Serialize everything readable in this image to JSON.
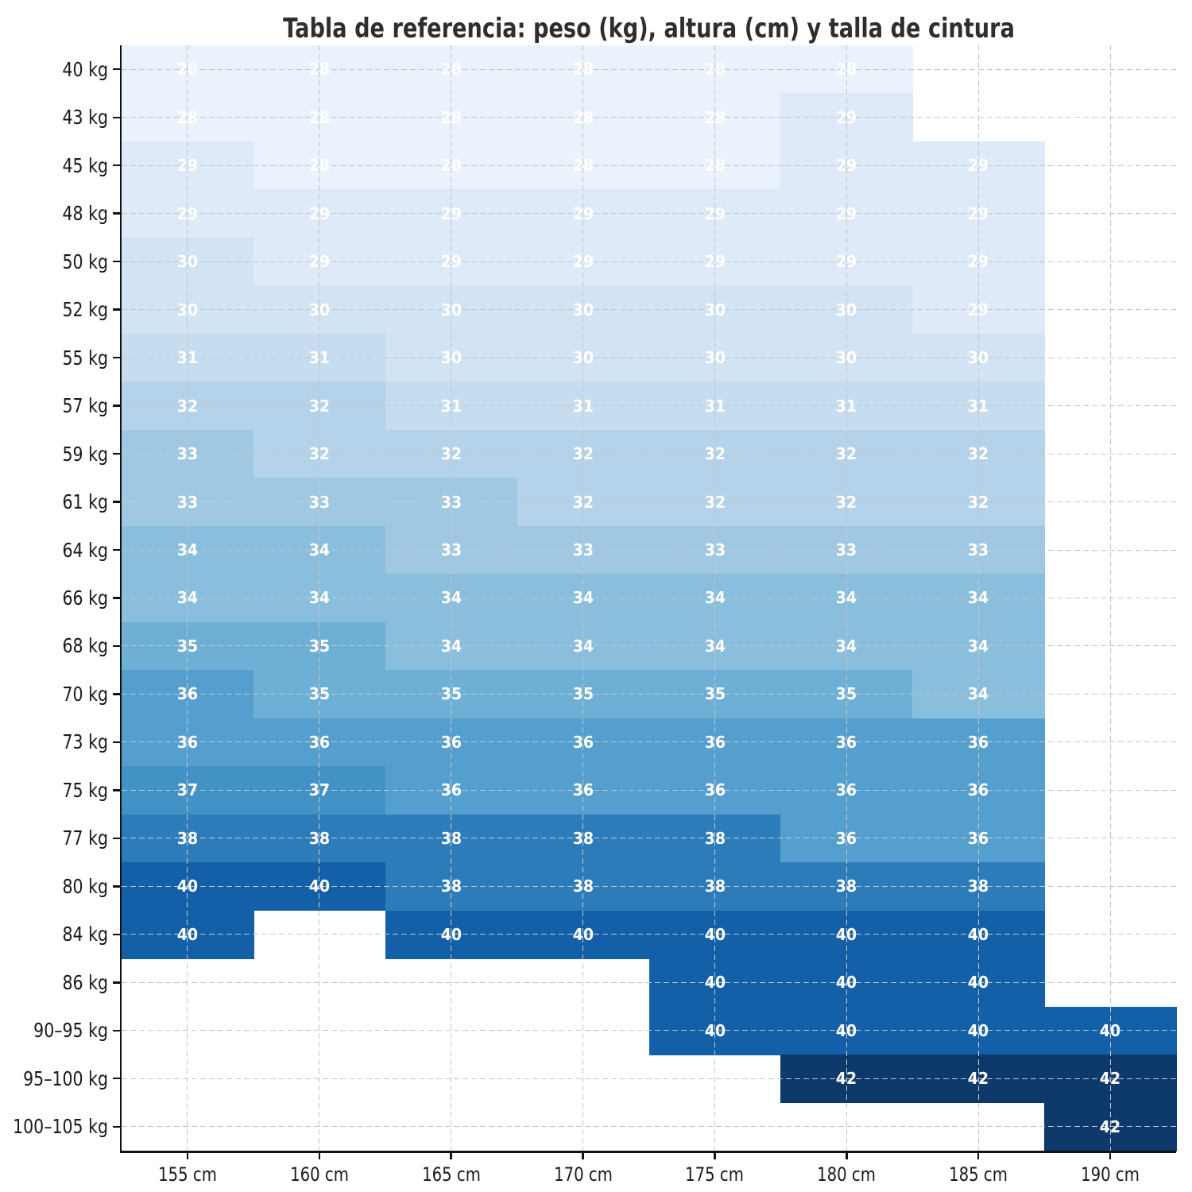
{
  "title": "Tabla de referencia: peso (kg), altura (cm) y talla de cintura",
  "chart_data": {
    "type": "heatmap",
    "title": "Tabla de referencia: peso (kg), altura (cm) y talla de cintura",
    "x_labels": [
      "155 cm",
      "160 cm",
      "165 cm",
      "170 cm",
      "175 cm",
      "180 cm",
      "185 cm",
      "190 cm"
    ],
    "y_labels": [
      "40 kg",
      "43 kg",
      "45 kg",
      "48 kg",
      "50 kg",
      "52 kg",
      "55 kg",
      "57 kg",
      "59 kg",
      "61 kg",
      "64 kg",
      "66 kg",
      "68 kg",
      "70 kg",
      "73 kg",
      "75 kg",
      "77 kg",
      "80 kg",
      "84 kg",
      "86 kg",
      "90–95 kg",
      "95–100 kg",
      "100–105 kg"
    ],
    "values": [
      [
        28,
        28,
        28,
        28,
        28,
        28,
        null,
        null
      ],
      [
        28,
        28,
        28,
        28,
        28,
        29,
        null,
        null
      ],
      [
        29,
        28,
        28,
        28,
        28,
        29,
        29,
        null
      ],
      [
        29,
        29,
        29,
        29,
        29,
        29,
        29,
        null
      ],
      [
        30,
        29,
        29,
        29,
        29,
        29,
        29,
        null
      ],
      [
        30,
        30,
        30,
        30,
        30,
        30,
        29,
        null
      ],
      [
        31,
        31,
        30,
        30,
        30,
        30,
        30,
        null
      ],
      [
        32,
        32,
        31,
        31,
        31,
        31,
        31,
        null
      ],
      [
        33,
        32,
        32,
        32,
        32,
        32,
        32,
        null
      ],
      [
        33,
        33,
        33,
        32,
        32,
        32,
        32,
        null
      ],
      [
        34,
        34,
        33,
        33,
        33,
        33,
        33,
        null
      ],
      [
        34,
        34,
        34,
        34,
        34,
        34,
        34,
        null
      ],
      [
        35,
        35,
        34,
        34,
        34,
        34,
        34,
        null
      ],
      [
        36,
        35,
        35,
        35,
        35,
        35,
        34,
        null
      ],
      [
        36,
        36,
        36,
        36,
        36,
        36,
        36,
        null
      ],
      [
        37,
        37,
        36,
        36,
        36,
        36,
        36,
        null
      ],
      [
        38,
        38,
        38,
        38,
        38,
        36,
        36,
        null
      ],
      [
        40,
        40,
        38,
        38,
        38,
        38,
        38,
        null
      ],
      [
        40,
        null,
        40,
        40,
        40,
        40,
        40,
        null
      ],
      [
        null,
        null,
        null,
        null,
        40,
        40,
        40,
        null
      ],
      [
        null,
        null,
        null,
        null,
        40,
        40,
        40,
        40
      ],
      [
        null,
        null,
        null,
        null,
        null,
        42,
        42,
        42
      ],
      [
        null,
        null,
        null,
        null,
        null,
        null,
        null,
        42
      ]
    ],
    "value_color_scale": {
      "28": "#eaf2fb",
      "29": "#deeaf7",
      "30": "#d2e3f3",
      "31": "#c6dcef",
      "32": "#b4d3ea",
      "33": "#a0c8e2",
      "34": "#89bedc",
      "35": "#6eafd5",
      "36": "#559fce",
      "37": "#4292c6",
      "38": "#2d7cba",
      "40": "#1460a8",
      "42": "#0d3a6b"
    },
    "missing_cell_color": "#ffffff",
    "grid": true,
    "grid_color": "#c6c6c6",
    "cell_text_color": "#ffffff",
    "axis_text_color": "#1a1a1a",
    "spine_color": "#111111",
    "title_color": "#2e2e2e",
    "legend": "none"
  }
}
